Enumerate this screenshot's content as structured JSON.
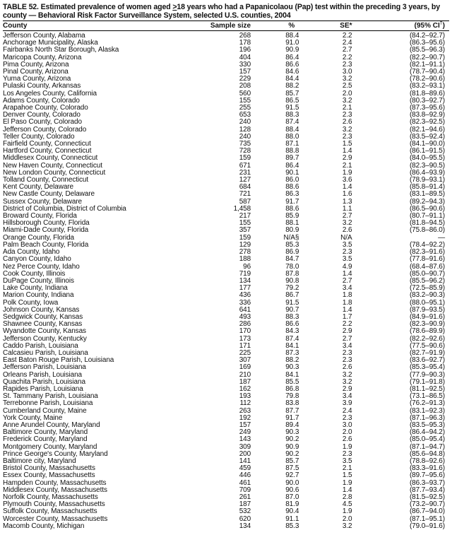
{
  "title": {
    "line1_prefix": "TABLE 52. Estimated prevalence of women aged ",
    "ge_symbol": ">",
    "line1_suffix": "18 years who had a Papanicolaou (Pap) test within the preceding 3 years, by",
    "line2": "county — Behavioral Risk Factor Surveillance System, selected U.S. counties, 2004"
  },
  "headers": {
    "county": "County",
    "sample_size": "Sample size",
    "percent": "%",
    "se": "SE*",
    "ci_prefix": "(95% CI",
    "ci_mark": "†",
    "ci_suffix": ")"
  },
  "rows": [
    [
      "Jefferson County, Alabama",
      "268",
      "88.4",
      "2.2",
      "(84.2–92.7)"
    ],
    [
      "Anchorage Municipality, Alaska",
      "178",
      "91.0",
      "2.4",
      "(86.3–95.6)"
    ],
    [
      "Fairbanks North Star Borough, Alaska",
      "196",
      "90.9",
      "2.7",
      "(85.5–96.3)"
    ],
    [
      "Maricopa County, Arizona",
      "404",
      "86.4",
      "2.2",
      "(82.2–90.7)"
    ],
    [
      "Pima County, Arizona",
      "330",
      "86.6",
      "2.3",
      "(82.1–91.1)"
    ],
    [
      "Pinal County, Arizona",
      "157",
      "84.6",
      "3.0",
      "(78.7–90.4)"
    ],
    [
      "Yuma County, Arizona",
      "229",
      "84.4",
      "3.2",
      "(78.2–90.6)"
    ],
    [
      "Pulaski County, Arkansas",
      "208",
      "88.2",
      "2.5",
      "(83.2–93.1)"
    ],
    [
      "Los Angeles County, California",
      "560",
      "85.7",
      "2.0",
      "(81.8–89.6)"
    ],
    [
      "Adams County, Colorado",
      "155",
      "86.5",
      "3.2",
      "(80.3–92.7)"
    ],
    [
      "Arapahoe County, Colorado",
      "255",
      "91.5",
      "2.1",
      "(87.3–95.6)"
    ],
    [
      "Denver County, Colorado",
      "653",
      "88.3",
      "2.3",
      "(83.8–92.9)"
    ],
    [
      "El Paso County, Colorado",
      "240",
      "87.4",
      "2.6",
      "(82.3–92.5)"
    ],
    [
      "Jefferson County, Colorado",
      "128",
      "88.4",
      "3.2",
      "(82.1–94.6)"
    ],
    [
      "Teller County, Colorado",
      "240",
      "88.0",
      "2.3",
      "(83.5–92.4)"
    ],
    [
      "Fairfield County, Connecticut",
      "735",
      "87.1",
      "1.5",
      "(84.1–90.0)"
    ],
    [
      "Hartford County, Connecticut",
      "728",
      "88.8",
      "1.4",
      "(86.1–91.5)"
    ],
    [
      "Middlesex County, Connecticut",
      "159",
      "89.7",
      "2.9",
      "(84.0–95.5)"
    ],
    [
      "New Haven County, Connecticut",
      "671",
      "86.4",
      "2.1",
      "(82.3–90.5)"
    ],
    [
      "New London County, Connecticut",
      "231",
      "90.1",
      "1.9",
      "(86.4–93.9)"
    ],
    [
      "Tolland County, Connecticut",
      "127",
      "86.0",
      "3.6",
      "(78.9–93.1)"
    ],
    [
      "Kent County, Delaware",
      "684",
      "88.6",
      "1.4",
      "(85.8–91.4)"
    ],
    [
      "New Castle County, Delaware",
      "721",
      "86.3",
      "1.6",
      "(83.1–89.5)"
    ],
    [
      "Sussex County, Delaware",
      "587",
      "91.7",
      "1.3",
      "(89.2–94.3)"
    ],
    [
      "District of Columbia, District of Columbia",
      "1,458",
      "88.6",
      "1.1",
      "(86.5–90.6)"
    ],
    [
      "Broward County, Florida",
      "217",
      "85.9",
      "2.7",
      "(80.7–91.1)"
    ],
    [
      "Hillsborough County, Florida",
      "155",
      "88.1",
      "3.2",
      "(81.8–94.5)"
    ],
    [
      "Miami-Dade County, Florida",
      "357",
      "80.9",
      "2.6",
      "(75.8–86.0)"
    ],
    [
      "Orange County, Florida",
      "159",
      "N/A§",
      "N/A",
      "—"
    ],
    [
      "Palm Beach County, Florida",
      "129",
      "85.3",
      "3.5",
      "(78.4–92.2)"
    ],
    [
      "Ada County, Idaho",
      "278",
      "86.9",
      "2.3",
      "(82.3–91.6)"
    ],
    [
      "Canyon County, Idaho",
      "188",
      "84.7",
      "3.5",
      "(77.8–91.6)"
    ],
    [
      "Nez Perce County, Idaho",
      "96",
      "78.0",
      "4.9",
      "(68.4–87.6)"
    ],
    [
      "Cook County, Illinois",
      "719",
      "87.8",
      "1.4",
      "(85.0–90.7)"
    ],
    [
      "DuPage County, Illinois",
      "134",
      "90.8",
      "2.7",
      "(85.5–96.2)"
    ],
    [
      "Lake County, Indiana",
      "177",
      "79.2",
      "3.4",
      "(72.5–85.9)"
    ],
    [
      "Marion County, Indiana",
      "436",
      "86.7",
      "1.8",
      "(83.2–90.3)"
    ],
    [
      "Polk County, Iowa",
      "336",
      "91.5",
      "1.8",
      "(88.0–95.1)"
    ],
    [
      "Johnson County, Kansas",
      "641",
      "90.7",
      "1.4",
      "(87.9–93.5)"
    ],
    [
      "Sedgwick County, Kansas",
      "493",
      "88.3",
      "1.7",
      "(84.9–91.6)"
    ],
    [
      "Shawnee County, Kansas",
      "286",
      "86.6",
      "2.2",
      "(82.3–90.9)"
    ],
    [
      "Wyandotte County, Kansas",
      "170",
      "84.3",
      "2.9",
      "(78.6–89.9)"
    ],
    [
      "Jefferson County, Kentucky",
      "173",
      "87.4",
      "2.7",
      "(82.2–92.6)"
    ],
    [
      "Caddo Parish, Louisiana",
      "171",
      "84.1",
      "3.4",
      "(77.5–90.6)"
    ],
    [
      "Calcasieu Parish, Louisiana",
      "225",
      "87.3",
      "2.3",
      "(82.7–91.9)"
    ],
    [
      "East Baton Rouge Parish, Louisiana",
      "307",
      "88.2",
      "2.3",
      "(83.6–92.7)"
    ],
    [
      "Jefferson Parish, Louisiana",
      "169",
      "90.3",
      "2.6",
      "(85.3–95.4)"
    ],
    [
      "Orleans Parish, Louisiana",
      "210",
      "84.1",
      "3.2",
      "(77.9–90.3)"
    ],
    [
      "Quachita Parish, Louisiana",
      "187",
      "85.5",
      "3.2",
      "(79.1–91.8)"
    ],
    [
      "Rapides Parish, Louisiana",
      "162",
      "86.8",
      "2.9",
      "(81.1–92.5)"
    ],
    [
      "St. Tammany Parish, Louisiana",
      "193",
      "79.8",
      "3.4",
      "(73.1–86.5)"
    ],
    [
      "Terrebonne Parish, Louisiana",
      "112",
      "83.8",
      "3.9",
      "(76.2–91.3)"
    ],
    [
      "Cumberland County, Maine",
      "263",
      "87.7",
      "2.4",
      "(83.1–92.3)"
    ],
    [
      "York County, Maine",
      "192",
      "91.7",
      "2.3",
      "(87.1–96.3)"
    ],
    [
      "Anne Arundel County, Maryland",
      "157",
      "89.4",
      "3.0",
      "(83.5–95.3)"
    ],
    [
      "Baltimore County, Maryland",
      "249",
      "90.3",
      "2.0",
      "(86.4–94.2)"
    ],
    [
      "Frederick County, Maryland",
      "143",
      "90.2",
      "2.6",
      "(85.0–95.4)"
    ],
    [
      "Montgomery County, Maryland",
      "309",
      "90.9",
      "1.9",
      "(87.1–94.7)"
    ],
    [
      "Prince George's County, Maryland",
      "200",
      "90.2",
      "2.3",
      "(85.6–94.8)"
    ],
    [
      "Baltimore city, Maryland",
      "141",
      "85.7",
      "3.5",
      "(78.8–92.6)"
    ],
    [
      "Bristol County, Massachusetts",
      "459",
      "87.5",
      "2.1",
      "(83.3–91.6)"
    ],
    [
      "Essex County, Massachusetts",
      "446",
      "92.7",
      "1.5",
      "(89.7–95.6)"
    ],
    [
      "Hampden County, Massachusetts",
      "461",
      "90.0",
      "1.9",
      "(86.3–93.7)"
    ],
    [
      "Middlesex County, Massachusetts",
      "709",
      "90.6",
      "1.4",
      "(87.7–93.4)"
    ],
    [
      "Norfolk County, Massachusetts",
      "261",
      "87.0",
      "2.8",
      "(81.5–92.5)"
    ],
    [
      "Plymouth County, Massachusetts",
      "187",
      "81.9",
      "4.5",
      "(73.2–90.7)"
    ],
    [
      "Suffolk County, Massachusetts",
      "532",
      "90.4",
      "1.9",
      "(86.7–94.0)"
    ],
    [
      "Worcester County, Massachusetts",
      "620",
      "91.1",
      "2.0",
      "(87.1–95.1)"
    ],
    [
      "Macomb County, Michigan",
      "134",
      "85.3",
      "3.2",
      "(79.0–91.6)"
    ]
  ]
}
